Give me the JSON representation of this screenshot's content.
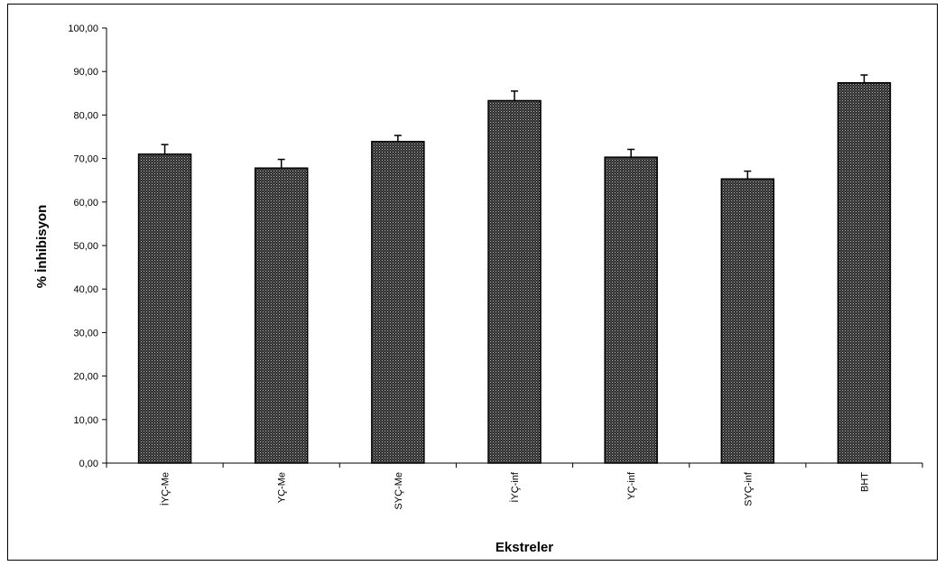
{
  "chart_data": {
    "type": "bar",
    "title": "",
    "xlabel": "Ekstreler",
    "ylabel": "% İnhibisyon",
    "categories": [
      "İYÇ-Me",
      "YÇ-Me",
      "SYÇ-Me",
      "İYÇ-inf",
      "YÇ-inf",
      "SYÇ-inf",
      "BHT"
    ],
    "values": [
      71.0,
      67.8,
      73.9,
      83.3,
      70.3,
      65.3,
      87.4
    ],
    "error": [
      2.2,
      2.0,
      1.4,
      2.2,
      1.8,
      1.8,
      1.8
    ],
    "ylim": [
      0,
      100
    ],
    "yticks": [
      0,
      10,
      20,
      30,
      40,
      50,
      60,
      70,
      80,
      90,
      100
    ],
    "ytick_labels": [
      "0,00",
      "10,00",
      "20,00",
      "30,00",
      "40,00",
      "50,00",
      "60,00",
      "70,00",
      "80,00",
      "90,00",
      "100,00"
    ],
    "grid": false,
    "legend": "none",
    "bar_pattern": "dotted-dark",
    "colors": {
      "bar_fill": "#555555",
      "bar_stroke": "#000000",
      "axis": "#000000",
      "background": "#ffffff"
    }
  }
}
